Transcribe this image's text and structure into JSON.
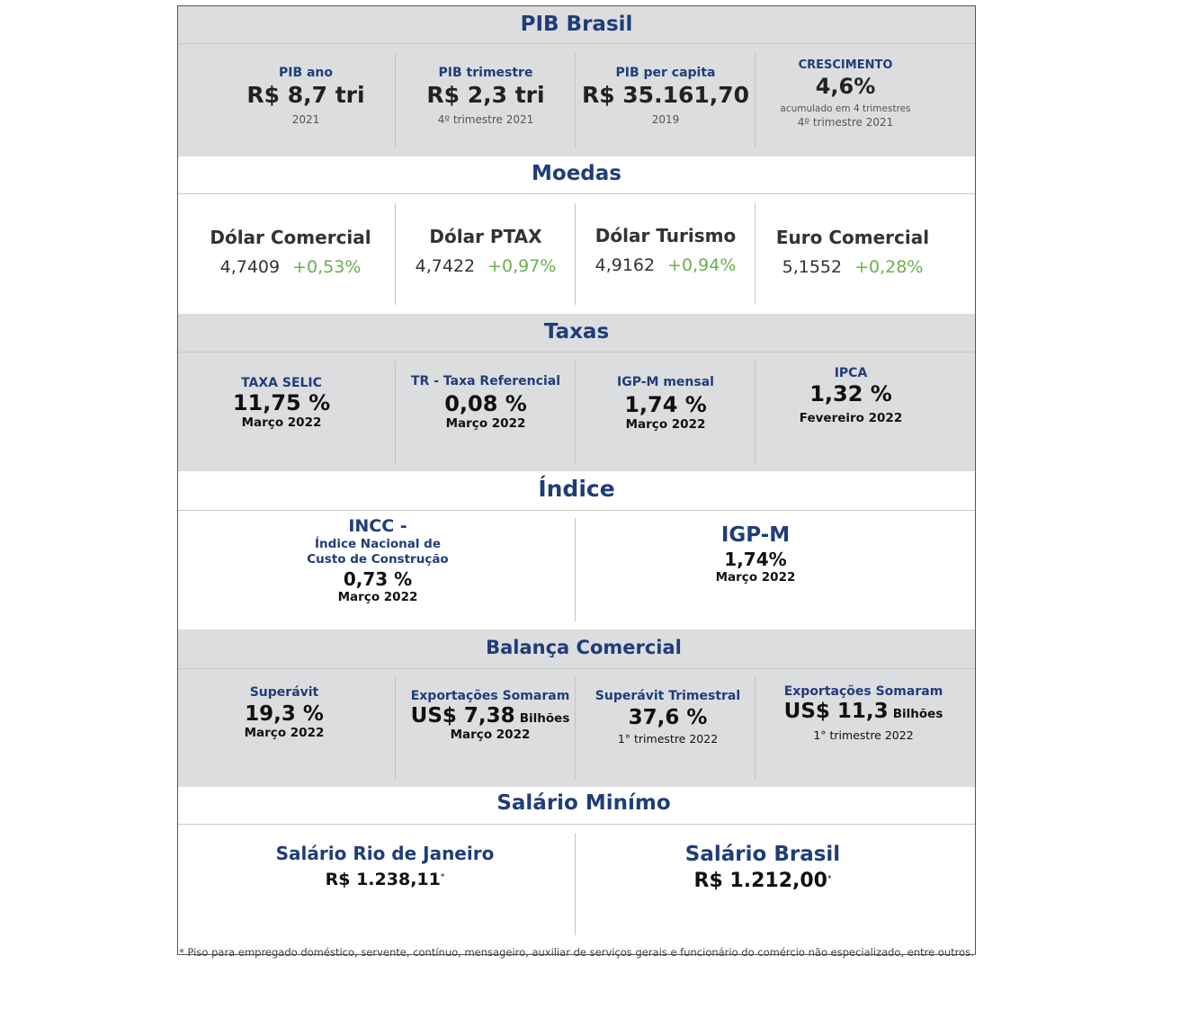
{
  "pib": {
    "title": "PIB Brasil",
    "items": [
      {
        "label": "PIB ano",
        "value": "R$ 8,7 tri",
        "sub": "2021"
      },
      {
        "label": "PIB trimestre",
        "value": "R$ 2,3 tri",
        "sub": "4º trimestre 2021"
      },
      {
        "label": "PIB per capita",
        "value": "R$ 35.161,70",
        "sub": "2019"
      },
      {
        "label": "CRESCIMENTO",
        "value": "4,6%",
        "sub1": "acumulado em 4 trimestres",
        "sub2": "4º trimestre 2021"
      }
    ]
  },
  "moedas": {
    "title": "Moedas",
    "items": [
      {
        "name": "Dólar Comercial",
        "value": "4,7409",
        "change": "+0,53%"
      },
      {
        "name": "Dólar PTAX",
        "value": "4,7422",
        "change": "+0,97%"
      },
      {
        "name": "Dólar Turismo",
        "value": "4,9162",
        "change": "+0,94%"
      },
      {
        "name": "Euro Comercial",
        "value": "5,1552",
        "change": "+0,28%"
      }
    ],
    "positive_color": "#6ab04c"
  },
  "taxas": {
    "title": "Taxas",
    "items": [
      {
        "label": "TAXA SELIC",
        "value": "11,75 %",
        "sub": "Março 2022"
      },
      {
        "label": "TR - Taxa Referencial",
        "value": "0,08 %",
        "sub": "Março 2022"
      },
      {
        "label": "IGP-M mensal",
        "value": "1,74 %",
        "sub": "Março 2022"
      },
      {
        "label": "IPCA",
        "value": "1,32 %",
        "sub": "Fevereiro 2022"
      }
    ]
  },
  "indice": {
    "title": "Índice",
    "left": {
      "label1": "INCC -",
      "label2": "Índice Nacional de",
      "label3": "Custo de Construção",
      "value": "0,73 %",
      "sub": "Março 2022"
    },
    "right": {
      "label": "IGP-M",
      "value": "1,74%",
      "sub": "Março 2022"
    }
  },
  "balanca": {
    "title": "Balança Comercial",
    "items": [
      {
        "label": "Superávit",
        "value": "19,3 %",
        "unit": "",
        "sub": "Março 2022"
      },
      {
        "label": "Exportações Somaram",
        "value": "US$ 7,38",
        "unit": "Bilhões",
        "sub": "Março 2022"
      },
      {
        "label": "Superávit Trimestral",
        "value": "37,6 %",
        "unit": "",
        "sub": "1° trimestre 2022"
      },
      {
        "label": "Exportações Somaram",
        "value": "US$ 11,3",
        "unit": "Bilhões",
        "sub": "1° trimestre 2022"
      }
    ]
  },
  "salario": {
    "title": "Salário Minímo",
    "rj": {
      "label": "Salário Rio de Janeiro",
      "value": "R$ 1.238,11",
      "mark": "*"
    },
    "br": {
      "label": "Salário Brasil",
      "value": "R$ 1.212,00",
      "mark": "*"
    },
    "footnote": "* Piso para empregado doméstico, servente, contínuo, mensageiro,  auxiliar de serviços gerais e funcionário do comércio não especializado, entre outros."
  },
  "colors": {
    "title": "#1f3d7a",
    "gray_band": "#dcdddf"
  }
}
